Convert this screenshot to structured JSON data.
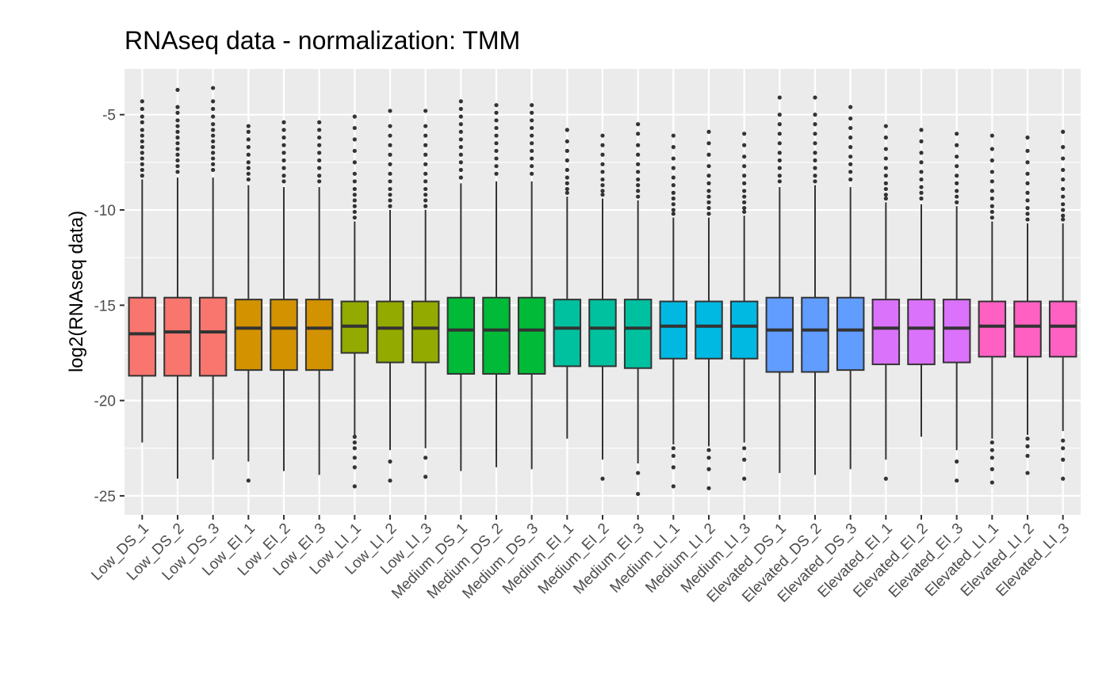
{
  "chart_data": {
    "type": "box",
    "title": "RNAseq data - normalization: TMM",
    "xlabel": "",
    "ylabel": "log2(RNAseq data)",
    "ylim": [
      -26,
      -2.6
    ],
    "yticks": [
      -5,
      -10,
      -15,
      -20,
      -25
    ],
    "ytick_labels": [
      "-5",
      "-10",
      "-15",
      "-20",
      "-25"
    ],
    "grid": true,
    "legend": "none",
    "categories": [
      "Low_DS_1",
      "Low_DS_2",
      "Low_DS_3",
      "Low_EI_1",
      "Low_EI_2",
      "Low_EI_3",
      "Low_LI_1",
      "Low_LI_2",
      "Low_LI_3",
      "Medium_DS_1",
      "Medium_DS_2",
      "Medium_DS_3",
      "Medium_EI_1",
      "Medium_EI_2",
      "Medium_EI_3",
      "Medium_LI_1",
      "Medium_LI_2",
      "Medium_LI_3",
      "Elevated_DS_1",
      "Elevated_DS_2",
      "Elevated_DS_3",
      "Elevated_EI_1",
      "Elevated_EI_2",
      "Elevated_EI_3",
      "Elevated_LI_1",
      "Elevated_LI_2",
      "Elevated_LI_3"
    ],
    "colors": [
      "#F8766D",
      "#F8766D",
      "#F8766D",
      "#D39200",
      "#D39200",
      "#D39200",
      "#93AA00",
      "#93AA00",
      "#93AA00",
      "#00BA38",
      "#00BA38",
      "#00BA38",
      "#00C19F",
      "#00C19F",
      "#00C19F",
      "#00B9E3",
      "#00B9E3",
      "#00B9E3",
      "#619CFF",
      "#619CFF",
      "#619CFF",
      "#DB72FB",
      "#DB72FB",
      "#DB72FB",
      "#FF61C3",
      "#FF61C3",
      "#FF61C3"
    ],
    "boxes": [
      {
        "q1": -18.7,
        "median": -16.5,
        "q3": -14.6,
        "whisker_low": -22.2,
        "whisker_high": -8.4,
        "outliers_high": [
          -4.3,
          -4.7,
          -5.1,
          -5.4,
          -5.8,
          -6.1,
          -6.4,
          -6.7,
          -7.0,
          -7.3,
          -7.6,
          -7.9,
          -8.2
        ],
        "outliers_low": []
      },
      {
        "q1": -18.7,
        "median": -16.4,
        "q3": -14.6,
        "whisker_low": -24.1,
        "whisker_high": -8.3,
        "outliers_high": [
          -3.7,
          -4.6,
          -4.9,
          -5.3,
          -5.6,
          -5.9,
          -6.2,
          -6.5,
          -6.8,
          -7.1,
          -7.4,
          -7.7,
          -8.0
        ],
        "outliers_low": []
      },
      {
        "q1": -18.7,
        "median": -16.4,
        "q3": -14.6,
        "whisker_low": -23.1,
        "whisker_high": -8.3,
        "outliers_high": [
          -3.6,
          -4.3,
          -4.7,
          -5.1,
          -5.5,
          -5.8,
          -6.1,
          -6.4,
          -6.7,
          -7.0,
          -7.3,
          -7.6,
          -7.9
        ],
        "outliers_low": []
      },
      {
        "q1": -18.4,
        "median": -16.2,
        "q3": -14.7,
        "whisker_low": -23.2,
        "whisker_high": -8.7,
        "outliers_high": [
          -5.6,
          -5.9,
          -6.3,
          -6.7,
          -7.1,
          -7.5,
          -7.8,
          -8.1,
          -8.4
        ],
        "outliers_low": [
          -24.2
        ]
      },
      {
        "q1": -18.4,
        "median": -16.2,
        "q3": -14.7,
        "whisker_low": -23.7,
        "whisker_high": -8.8,
        "outliers_high": [
          -5.4,
          -5.8,
          -6.2,
          -6.6,
          -7.0,
          -7.4,
          -7.8,
          -8.2,
          -8.5
        ],
        "outliers_low": []
      },
      {
        "q1": -18.4,
        "median": -16.2,
        "q3": -14.7,
        "whisker_low": -23.9,
        "whisker_high": -8.8,
        "outliers_high": [
          -5.4,
          -5.8,
          -6.2,
          -6.6,
          -7.0,
          -7.4,
          -7.8,
          -8.2,
          -8.5
        ],
        "outliers_low": []
      },
      {
        "q1": -17.5,
        "median": -16.1,
        "q3": -14.8,
        "whisker_low": -21.8,
        "whisker_high": -10.6,
        "outliers_high": [
          -5.1,
          -5.7,
          -6.3,
          -6.9,
          -7.5,
          -8.1,
          -8.5,
          -8.9,
          -9.2,
          -9.5,
          -9.8,
          -10.1,
          -10.4
        ],
        "outliers_low": [
          -21.9,
          -22.2,
          -22.5,
          -23.0,
          -23.5,
          -24.5
        ]
      },
      {
        "q1": -18.0,
        "median": -16.2,
        "q3": -14.8,
        "whisker_low": -22.6,
        "whisker_high": -10.0,
        "outliers_high": [
          -4.8,
          -5.6,
          -6.1,
          -6.6,
          -7.1,
          -7.6,
          -8.1,
          -8.5,
          -8.9,
          -9.2,
          -9.5,
          -9.8
        ],
        "outliers_low": [
          -23.2,
          -24.2
        ]
      },
      {
        "q1": -18.0,
        "median": -16.2,
        "q3": -14.8,
        "whisker_low": -22.5,
        "whisker_high": -10.0,
        "outliers_high": [
          -4.8,
          -5.6,
          -6.1,
          -6.6,
          -7.1,
          -7.6,
          -8.1,
          -8.5,
          -8.9,
          -9.2,
          -9.5,
          -9.8
        ],
        "outliers_low": [
          -23.0,
          -24.0
        ]
      },
      {
        "q1": -18.6,
        "median": -16.3,
        "q3": -14.6,
        "whisker_low": -23.7,
        "whisker_high": -8.6,
        "outliers_high": [
          -4.3,
          -4.7,
          -5.1,
          -5.5,
          -5.9,
          -6.3,
          -6.7,
          -7.1,
          -7.5,
          -7.9,
          -8.3
        ],
        "outliers_low": []
      },
      {
        "q1": -18.6,
        "median": -16.3,
        "q3": -14.6,
        "whisker_low": -23.5,
        "whisker_high": -8.5,
        "outliers_high": [
          -4.5,
          -4.9,
          -5.3,
          -5.7,
          -6.1,
          -6.5,
          -6.9,
          -7.3,
          -7.7,
          -8.1
        ],
        "outliers_low": []
      },
      {
        "q1": -18.6,
        "median": -16.3,
        "q3": -14.6,
        "whisker_low": -23.6,
        "whisker_high": -8.5,
        "outliers_high": [
          -4.5,
          -4.9,
          -5.3,
          -5.7,
          -6.1,
          -6.5,
          -6.9,
          -7.3,
          -7.7,
          -8.1
        ],
        "outliers_low": []
      },
      {
        "q1": -18.2,
        "median": -16.2,
        "q3": -14.7,
        "whisker_low": -22.0,
        "whisker_high": -9.3,
        "outliers_high": [
          -5.8,
          -6.4,
          -6.9,
          -7.4,
          -7.9,
          -8.3,
          -8.6,
          -8.9,
          -9.1
        ],
        "outliers_low": []
      },
      {
        "q1": -18.2,
        "median": -16.2,
        "q3": -14.7,
        "whisker_low": -23.1,
        "whisker_high": -9.4,
        "outliers_high": [
          -6.1,
          -6.6,
          -7.1,
          -7.6,
          -8.0,
          -8.4,
          -8.7,
          -9.0,
          -9.2
        ],
        "outliers_low": [
          -24.1
        ]
      },
      {
        "q1": -18.3,
        "median": -16.2,
        "q3": -14.7,
        "whisker_low": -23.3,
        "whisker_high": -9.5,
        "outliers_high": [
          -5.5,
          -6.0,
          -6.6,
          -7.1,
          -7.6,
          -8.0,
          -8.4,
          -8.7,
          -9.0,
          -9.3
        ],
        "outliers_low": [
          -23.8,
          -24.9
        ]
      },
      {
        "q1": -17.8,
        "median": -16.1,
        "q3": -14.8,
        "whisker_low": -22.3,
        "whisker_high": -10.4,
        "outliers_high": [
          -6.1,
          -6.7,
          -7.3,
          -7.8,
          -8.3,
          -8.7,
          -9.1,
          -9.4,
          -9.7,
          -10.0,
          -10.2
        ],
        "outliers_low": [
          -22.5,
          -22.9,
          -23.5,
          -24.5
        ]
      },
      {
        "q1": -17.8,
        "median": -16.1,
        "q3": -14.8,
        "whisker_low": -22.4,
        "whisker_high": -10.4,
        "outliers_high": [
          -5.9,
          -6.5,
          -7.1,
          -7.7,
          -8.2,
          -8.6,
          -9.0,
          -9.3,
          -9.6,
          -9.9,
          -10.2
        ],
        "outliers_low": [
          -22.6,
          -23.0,
          -23.6,
          -24.6
        ]
      },
      {
        "q1": -17.8,
        "median": -16.1,
        "q3": -14.8,
        "whisker_low": -22.2,
        "whisker_high": -10.3,
        "outliers_high": [
          -6.0,
          -6.6,
          -7.2,
          -7.7,
          -8.2,
          -8.6,
          -9.0,
          -9.3,
          -9.6,
          -9.9,
          -10.1
        ],
        "outliers_low": [
          -22.5,
          -23.1,
          -24.1
        ]
      },
      {
        "q1": -18.5,
        "median": -16.3,
        "q3": -14.6,
        "whisker_low": -23.8,
        "whisker_high": -8.8,
        "outliers_high": [
          -4.1,
          -5.0,
          -5.5,
          -6.0,
          -6.5,
          -7.0,
          -7.4,
          -7.8,
          -8.2,
          -8.5
        ],
        "outliers_low": []
      },
      {
        "q1": -18.5,
        "median": -16.3,
        "q3": -14.6,
        "whisker_low": -23.9,
        "whisker_high": -8.7,
        "outliers_high": [
          -4.1,
          -5.0,
          -5.5,
          -6.0,
          -6.5,
          -7.0,
          -7.4,
          -7.8,
          -8.2,
          -8.5
        ],
        "outliers_low": []
      },
      {
        "q1": -18.4,
        "median": -16.3,
        "q3": -14.6,
        "whisker_low": -23.6,
        "whisker_high": -8.8,
        "outliers_high": [
          -4.6,
          -5.2,
          -5.7,
          -6.2,
          -6.7,
          -7.2,
          -7.6,
          -8.0,
          -8.4
        ],
        "outliers_low": []
      },
      {
        "q1": -18.1,
        "median": -16.2,
        "q3": -14.7,
        "whisker_low": -23.1,
        "whisker_high": -9.6,
        "outliers_high": [
          -5.6,
          -6.2,
          -6.8,
          -7.3,
          -7.8,
          -8.2,
          -8.6,
          -8.9,
          -9.2,
          -9.4
        ],
        "outliers_low": [
          -24.1
        ]
      },
      {
        "q1": -18.1,
        "median": -16.2,
        "q3": -14.7,
        "whisker_low": -21.9,
        "whisker_high": -9.7,
        "outliers_high": [
          -5.8,
          -6.4,
          -7.0,
          -7.5,
          -8.0,
          -8.4,
          -8.8,
          -9.1,
          -9.4
        ],
        "outliers_low": []
      },
      {
        "q1": -18.0,
        "median": -16.2,
        "q3": -14.7,
        "whisker_low": -22.6,
        "whisker_high": -9.8,
        "outliers_high": [
          -6.0,
          -6.6,
          -7.2,
          -7.7,
          -8.2,
          -8.6,
          -9.0,
          -9.3,
          -9.6
        ],
        "outliers_low": [
          -23.2,
          -24.2
        ]
      },
      {
        "q1": -17.7,
        "median": -16.1,
        "q3": -14.8,
        "whisker_low": -22.0,
        "whisker_high": -10.6,
        "outliers_high": [
          -6.1,
          -6.8,
          -7.4,
          -8.0,
          -8.5,
          -9.0,
          -9.4,
          -9.8,
          -10.1,
          -10.4
        ],
        "outliers_low": [
          -22.2,
          -22.6,
          -23.0,
          -23.6,
          -24.3
        ]
      },
      {
        "q1": -17.7,
        "median": -16.1,
        "q3": -14.8,
        "whisker_low": -21.8,
        "whisker_high": -10.7,
        "outliers_high": [
          -6.2,
          -6.9,
          -7.5,
          -8.1,
          -8.6,
          -9.1,
          -9.5,
          -9.9,
          -10.2,
          -10.5
        ],
        "outliers_low": [
          -22.0,
          -22.4,
          -22.9,
          -23.8
        ]
      },
      {
        "q1": -17.7,
        "median": -16.1,
        "q3": -14.8,
        "whisker_low": -21.6,
        "whisker_high": -10.7,
        "outliers_high": [
          -5.9,
          -6.7,
          -7.3,
          -7.9,
          -8.4,
          -8.9,
          -9.3,
          -9.7,
          -10.0,
          -10.3,
          -10.5
        ],
        "outliers_low": [
          -22.1,
          -22.5,
          -23.1,
          -24.1
        ]
      }
    ]
  }
}
